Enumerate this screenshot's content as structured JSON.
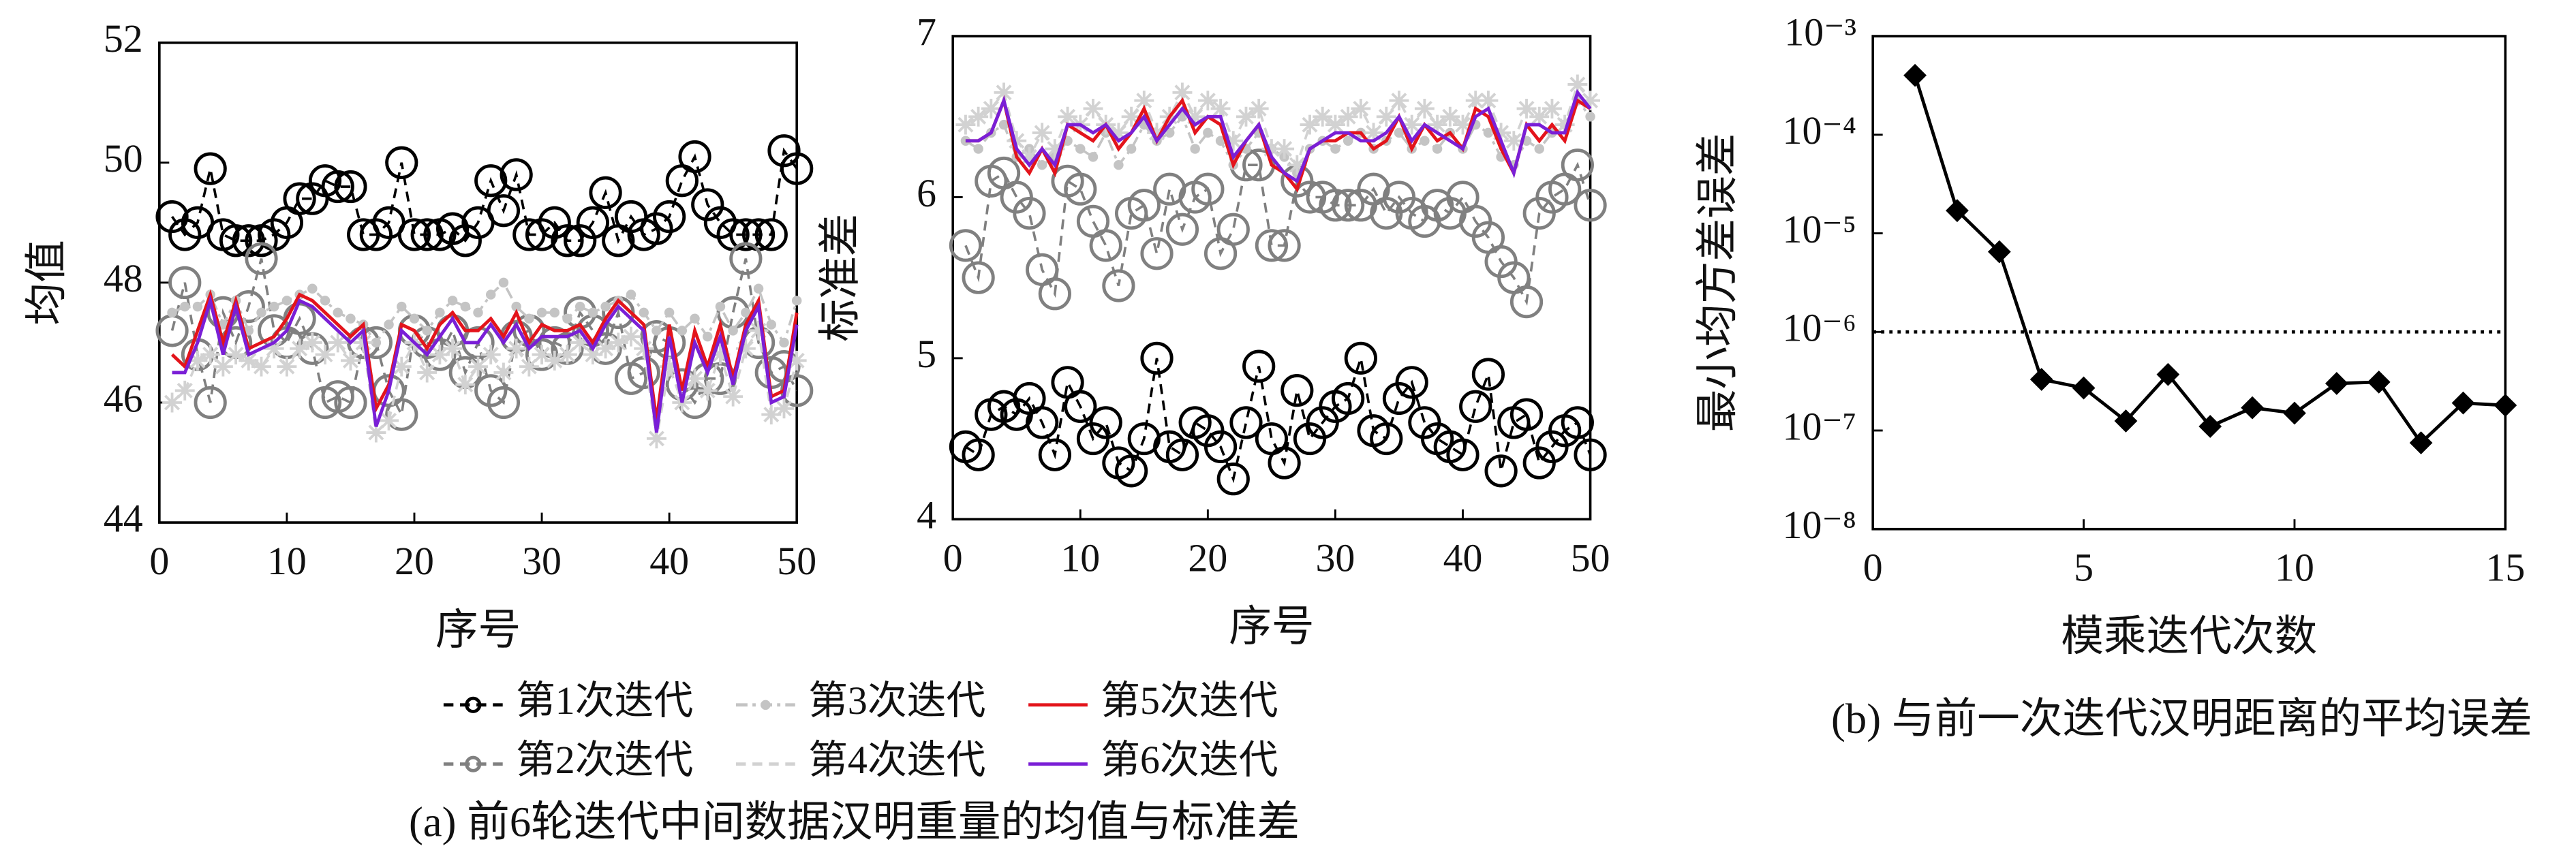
{
  "chart_data": [
    {
      "type": "line",
      "xlabel": "序号",
      "ylabel": "均值",
      "xlim": [
        0,
        50
      ],
      "xticks": [
        0,
        10,
        20,
        30,
        40,
        50
      ],
      "ylim": [
        44,
        52
      ],
      "yticks": [
        44,
        46,
        48,
        50,
        52
      ],
      "x": [
        1,
        2,
        3,
        4,
        5,
        6,
        7,
        8,
        9,
        10,
        11,
        12,
        13,
        14,
        15,
        16,
        17,
        18,
        19,
        20,
        21,
        22,
        23,
        24,
        25,
        26,
        27,
        28,
        29,
        30,
        31,
        32,
        33,
        34,
        35,
        36,
        37,
        38,
        39,
        40,
        41,
        42,
        43,
        44,
        45,
        46,
        47,
        48,
        49,
        50
      ],
      "series": [
        {
          "name": "第1次迭代",
          "color": "#000000",
          "linestyle": "dashed",
          "marker": "circle",
          "values": [
            49.1,
            48.8,
            49.0,
            49.9,
            48.8,
            48.7,
            48.7,
            48.7,
            48.8,
            49.0,
            49.4,
            49.4,
            49.7,
            49.6,
            49.6,
            48.8,
            48.8,
            49.0,
            50.0,
            48.8,
            48.8,
            48.8,
            48.9,
            48.7,
            49.0,
            49.7,
            49.2,
            49.8,
            48.8,
            48.8,
            49.0,
            48.7,
            48.7,
            49.0,
            49.5,
            48.7,
            49.1,
            48.8,
            48.9,
            49.1,
            49.7,
            50.1,
            49.3,
            49.0,
            48.8,
            48.8,
            48.8,
            48.8,
            50.2,
            49.9
          ]
        },
        {
          "name": "第2次迭代",
          "color": "#808080",
          "linestyle": "dashed",
          "marker": "circle",
          "values": [
            47.2,
            48.0,
            46.8,
            46.0,
            47.5,
            47.0,
            47.6,
            48.4,
            47.2,
            47.0,
            47.4,
            46.9,
            46.0,
            46.1,
            46.0,
            47.0,
            47.0,
            46.2,
            45.8,
            47.2,
            47.0,
            46.8,
            47.2,
            46.5,
            47.0,
            46.2,
            46.0,
            47.1,
            47.2,
            46.8,
            47.0,
            46.9,
            47.5,
            47.2,
            46.9,
            47.5,
            46.4,
            46.5,
            47.1,
            47.0,
            46.3,
            46.0,
            46.4,
            46.4,
            47.5,
            48.4,
            47.0,
            46.5,
            46.6,
            46.2
          ]
        },
        {
          "name": "第3次迭代",
          "color": "#c4c4c4",
          "linestyle": "dashdot",
          "marker": "dot",
          "values": [
            47.5,
            47.6,
            47.6,
            47.8,
            47.3,
            47.7,
            47.2,
            47.5,
            47.6,
            47.7,
            47.8,
            47.9,
            47.7,
            47.5,
            47.4,
            47.3,
            47.0,
            47.3,
            47.6,
            47.4,
            47.2,
            47.5,
            47.7,
            47.6,
            47.5,
            47.8,
            48.0,
            47.6,
            47.4,
            47.5,
            47.5,
            47.4,
            47.6,
            47.5,
            47.6,
            47.7,
            47.8,
            47.5,
            47.2,
            47.5,
            47.2,
            47.4,
            47.1,
            47.6,
            47.2,
            47.5,
            47.9,
            47.3,
            47.0,
            47.7
          ]
        },
        {
          "name": "第4次迭代",
          "color": "#d2d2d2",
          "linestyle": "dashed",
          "marker": "star",
          "values": [
            46.0,
            46.2,
            46.7,
            46.8,
            46.6,
            46.8,
            46.7,
            46.6,
            46.9,
            46.6,
            46.9,
            47.0,
            46.8,
            47.0,
            46.7,
            47.0,
            45.5,
            45.7,
            46.6,
            47.0,
            46.5,
            46.8,
            46.9,
            46.3,
            46.6,
            46.8,
            46.5,
            46.9,
            46.6,
            46.8,
            46.7,
            46.8,
            47.0,
            46.8,
            46.9,
            47.0,
            47.1,
            46.9,
            45.4,
            46.6,
            46.0,
            46.4,
            46.2,
            46.8,
            46.1,
            46.9,
            47.2,
            45.8,
            45.9,
            46.7
          ]
        },
        {
          "name": "第5次迭代",
          "color": "#e3141b",
          "linestyle": "solid",
          "marker": "none",
          "values": [
            46.8,
            46.6,
            47.2,
            47.8,
            47.0,
            47.7,
            46.9,
            47.0,
            47.1,
            47.4,
            47.8,
            47.7,
            47.5,
            47.3,
            47.1,
            47.3,
            45.9,
            46.3,
            47.3,
            47.2,
            46.9,
            47.3,
            47.5,
            47.2,
            47.2,
            47.4,
            47.1,
            47.5,
            47.0,
            47.3,
            47.2,
            47.2,
            47.3,
            47.0,
            47.4,
            47.7,
            47.5,
            47.3,
            45.7,
            47.3,
            46.2,
            47.2,
            46.6,
            47.3,
            46.4,
            47.3,
            47.7,
            46.1,
            46.2,
            47.5
          ]
        },
        {
          "name": "第6次迭代",
          "color": "#7a1fd6",
          "linestyle": "solid",
          "marker": "none",
          "values": [
            46.5,
            46.5,
            47.0,
            47.7,
            46.8,
            47.6,
            46.8,
            46.9,
            47.0,
            47.2,
            47.7,
            47.6,
            47.4,
            47.2,
            47.0,
            47.2,
            45.6,
            46.2,
            47.2,
            47.0,
            46.8,
            47.1,
            47.4,
            47.0,
            47.0,
            47.3,
            47.0,
            47.3,
            46.9,
            47.1,
            47.1,
            47.1,
            47.2,
            46.9,
            47.3,
            47.6,
            47.4,
            47.2,
            45.5,
            47.1,
            46.0,
            47.0,
            46.5,
            47.1,
            46.3,
            47.2,
            47.6,
            46.0,
            46.1,
            47.3
          ]
        }
      ]
    },
    {
      "type": "line",
      "xlabel": "序号",
      "ylabel": "标准差",
      "xlim": [
        0,
        50
      ],
      "xticks": [
        0,
        10,
        20,
        30,
        40,
        50
      ],
      "ylim": [
        4,
        7
      ],
      "yticks": [
        4,
        5,
        6,
        7
      ],
      "x": [
        1,
        2,
        3,
        4,
        5,
        6,
        7,
        8,
        9,
        10,
        11,
        12,
        13,
        14,
        15,
        16,
        17,
        18,
        19,
        20,
        21,
        22,
        23,
        24,
        25,
        26,
        27,
        28,
        29,
        30,
        31,
        32,
        33,
        34,
        35,
        36,
        37,
        38,
        39,
        40,
        41,
        42,
        43,
        44,
        45,
        46,
        47,
        48,
        49,
        50
      ],
      "series": [
        {
          "color": "#000000",
          "linestyle": "dashed",
          "marker": "circle",
          "values": [
            4.45,
            4.4,
            4.65,
            4.7,
            4.65,
            4.75,
            4.6,
            4.4,
            4.85,
            4.7,
            4.5,
            4.6,
            4.35,
            4.3,
            4.5,
            5.0,
            4.45,
            4.4,
            4.6,
            4.55,
            4.45,
            4.25,
            4.6,
            4.95,
            4.5,
            4.35,
            4.8,
            4.5,
            4.6,
            4.7,
            4.75,
            5.0,
            4.55,
            4.5,
            4.75,
            4.85,
            4.6,
            4.5,
            4.45,
            4.4,
            4.7,
            4.9,
            4.3,
            4.6,
            4.65,
            4.35,
            4.45,
            4.55,
            4.6,
            4.4
          ]
        },
        {
          "color": "#808080",
          "linestyle": "dashed",
          "marker": "circle",
          "values": [
            5.7,
            5.5,
            6.1,
            6.15,
            6.0,
            5.9,
            5.55,
            5.4,
            6.1,
            6.05,
            5.85,
            5.7,
            5.45,
            5.9,
            5.95,
            5.65,
            6.05,
            5.8,
            6.0,
            6.05,
            5.65,
            5.8,
            6.2,
            6.2,
            5.7,
            5.7,
            6.1,
            6.0,
            6.0,
            5.95,
            5.95,
            5.95,
            6.05,
            5.9,
            6.0,
            5.9,
            5.85,
            5.95,
            5.9,
            6.0,
            5.85,
            5.75,
            5.6,
            5.5,
            5.35,
            5.9,
            6.0,
            6.05,
            6.2,
            5.95
          ]
        },
        {
          "color": "#c4c4c4",
          "linestyle": "dashdot",
          "marker": "dot",
          "values": [
            6.35,
            6.3,
            6.4,
            6.45,
            6.25,
            6.3,
            6.2,
            6.25,
            6.35,
            6.3,
            6.25,
            6.4,
            6.2,
            6.3,
            6.45,
            6.35,
            6.4,
            6.5,
            6.3,
            6.4,
            6.35,
            6.2,
            6.3,
            6.4,
            6.3,
            6.25,
            6.15,
            6.3,
            6.35,
            6.3,
            6.35,
            6.4,
            6.3,
            6.35,
            6.4,
            6.3,
            6.35,
            6.3,
            6.4,
            6.3,
            6.45,
            6.4,
            6.25,
            6.2,
            6.35,
            6.3,
            6.4,
            6.45,
            6.6,
            6.5
          ]
        },
        {
          "color": "#d2d2d2",
          "linestyle": "dashed",
          "marker": "star",
          "values": [
            6.45,
            6.5,
            6.55,
            6.65,
            6.35,
            6.25,
            6.4,
            6.3,
            6.5,
            6.45,
            6.55,
            6.45,
            6.4,
            6.5,
            6.6,
            6.4,
            6.5,
            6.65,
            6.5,
            6.6,
            6.55,
            6.35,
            6.5,
            6.55,
            6.3,
            6.3,
            6.2,
            6.45,
            6.5,
            6.45,
            6.5,
            6.55,
            6.4,
            6.5,
            6.6,
            6.45,
            6.55,
            6.45,
            6.5,
            6.45,
            6.6,
            6.6,
            6.4,
            6.35,
            6.55,
            6.5,
            6.55,
            6.45,
            6.7,
            6.6
          ]
        },
        {
          "color": "#e3141b",
          "linestyle": "solid",
          "marker": "none",
          "values": [
            6.35,
            6.35,
            6.4,
            6.6,
            6.25,
            6.15,
            6.3,
            6.15,
            6.45,
            6.4,
            6.35,
            6.45,
            6.3,
            6.4,
            6.55,
            6.35,
            6.5,
            6.6,
            6.4,
            6.5,
            6.45,
            6.2,
            6.35,
            6.45,
            6.2,
            6.15,
            6.05,
            6.3,
            6.35,
            6.35,
            6.4,
            6.4,
            6.3,
            6.35,
            6.5,
            6.3,
            6.45,
            6.35,
            6.4,
            6.3,
            6.55,
            6.5,
            6.3,
            6.15,
            6.45,
            6.35,
            6.45,
            6.35,
            6.6,
            6.55
          ]
        },
        {
          "color": "#7a1fd6",
          "linestyle": "solid",
          "marker": "none",
          "values": [
            6.35,
            6.35,
            6.4,
            6.6,
            6.3,
            6.2,
            6.3,
            6.2,
            6.45,
            6.45,
            6.4,
            6.45,
            6.35,
            6.4,
            6.5,
            6.35,
            6.45,
            6.55,
            6.45,
            6.5,
            6.5,
            6.25,
            6.35,
            6.45,
            6.25,
            6.15,
            6.1,
            6.3,
            6.35,
            6.4,
            6.4,
            6.35,
            6.35,
            6.4,
            6.5,
            6.35,
            6.45,
            6.4,
            6.35,
            6.3,
            6.5,
            6.55,
            6.35,
            6.15,
            6.45,
            6.45,
            6.4,
            6.4,
            6.65,
            6.55
          ]
        }
      ]
    },
    {
      "type": "line",
      "xlabel": "模乘迭代次数",
      "ylabel": "最小均方差误差",
      "yscale": "log",
      "threshold": 1e-06,
      "xlim": [
        0,
        15
      ],
      "xticks": [
        0,
        5,
        10,
        15
      ],
      "ylim": [
        1e-08,
        0.001
      ],
      "yticks": [
        {
          "value": 1e-08,
          "label": "10⁻⁸"
        },
        {
          "value": 1e-07,
          "label": "10⁻⁷"
        },
        {
          "value": 1e-06,
          "label": "10⁻⁶"
        },
        {
          "value": 1e-05,
          "label": "10⁻⁵"
        },
        {
          "value": 0.0001,
          "label": "10⁻⁴"
        },
        {
          "value": 0.001,
          "label": "10⁻³"
        }
      ],
      "x": [
        1,
        2,
        3,
        4,
        5,
        6,
        7,
        8,
        9,
        10,
        11,
        12,
        13,
        14,
        15
      ],
      "series": [
        {
          "color": "#000000",
          "linestyle": "solid",
          "marker": "diamond",
          "values": [
            0.0004,
            1.7e-05,
            6.5e-06,
            3.3e-07,
            2.7e-07,
            1.25e-07,
            3.7e-07,
            1.1e-07,
            1.7e-07,
            1.5e-07,
            3e-07,
            3.1e-07,
            7.5e-08,
            1.9e-07,
            1.8e-07
          ]
        }
      ]
    }
  ],
  "captions": [
    "(a) 前6轮迭代中间数据汉明重量的均值与标准差",
    "(b) 与前一次迭代汉明距离的平均误差"
  ]
}
